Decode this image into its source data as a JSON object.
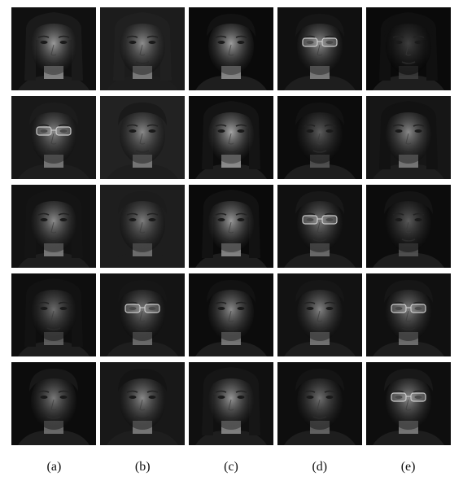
{
  "figure": {
    "columns": [
      {
        "label": "(a)",
        "faces": [
          {
            "skin": "#9a9a9a",
            "bg": "#101010",
            "hair": "#1a1a1a",
            "glasses": false,
            "long_hair": true,
            "brightness": 0.85
          },
          {
            "skin": "#8a8a8a",
            "bg": "#181818",
            "hair": "#1c1c1c",
            "glasses": true,
            "long_hair": false,
            "brightness": 0.7
          },
          {
            "skin": "#8c8c8c",
            "bg": "#121212",
            "hair": "#141414",
            "glasses": false,
            "long_hair": true,
            "brightness": 0.7
          },
          {
            "skin": "#6c6c6c",
            "bg": "#0e0e0e",
            "hair": "#121212",
            "glasses": false,
            "long_hair": true,
            "brightness": 0.55
          },
          {
            "skin": "#7a7a7a",
            "bg": "#0c0c0c",
            "hair": "#181818",
            "glasses": false,
            "long_hair": false,
            "brightness": 0.6
          }
        ]
      },
      {
        "label": "(b)",
        "faces": [
          {
            "skin": "#8e8e8e",
            "bg": "#1c1c1c",
            "hair": "#202020",
            "glasses": false,
            "long_hair": true,
            "brightness": 0.7
          },
          {
            "skin": "#8a8a8a",
            "bg": "#222222",
            "hair": "#1a1a1a",
            "glasses": false,
            "long_hair": false,
            "brightness": 0.65
          },
          {
            "skin": "#7e7e7e",
            "bg": "#1e1e1e",
            "hair": "#1c1c1c",
            "glasses": false,
            "long_hair": false,
            "brightness": 0.65
          },
          {
            "skin": "#7a7a7a",
            "bg": "#141414",
            "hair": "#161616",
            "glasses": true,
            "long_hair": false,
            "brightness": 0.6
          },
          {
            "skin": "#8a8a8a",
            "bg": "#181818",
            "hair": "#141414",
            "glasses": false,
            "long_hair": false,
            "brightness": 0.65
          }
        ]
      },
      {
        "label": "(c)",
        "faces": [
          {
            "skin": "#9e9e9e",
            "bg": "#0a0a0a",
            "hair": "#121212",
            "glasses": false,
            "long_hair": false,
            "brightness": 0.85
          },
          {
            "skin": "#a6a6a6",
            "bg": "#0c0c0c",
            "hair": "#141414",
            "glasses": false,
            "long_hair": true,
            "brightness": 0.9
          },
          {
            "skin": "#9a9a9a",
            "bg": "#0a0a0a",
            "hair": "#121212",
            "glasses": false,
            "long_hair": true,
            "brightness": 0.8
          },
          {
            "skin": "#8a8a8a",
            "bg": "#0c0c0c",
            "hair": "#121212",
            "glasses": false,
            "long_hair": false,
            "brightness": 0.7
          },
          {
            "skin": "#969696",
            "bg": "#101010",
            "hair": "#161616",
            "glasses": false,
            "long_hair": true,
            "brightness": 0.8
          }
        ]
      },
      {
        "label": "(d)",
        "faces": [
          {
            "skin": "#8e8e8e",
            "bg": "#101010",
            "hair": "#161616",
            "glasses": true,
            "long_hair": false,
            "brightness": 0.75
          },
          {
            "skin": "#5c5c5c",
            "bg": "#0c0c0c",
            "hair": "#121212",
            "glasses": false,
            "long_hair": false,
            "brightness": 0.45
          },
          {
            "skin": "#7a7a7a",
            "bg": "#101010",
            "hair": "#181818",
            "glasses": true,
            "long_hair": false,
            "brightness": 0.6
          },
          {
            "skin": "#848484",
            "bg": "#121212",
            "hair": "#161616",
            "glasses": false,
            "long_hair": false,
            "brightness": 0.7
          },
          {
            "skin": "#707070",
            "bg": "#0e0e0e",
            "hair": "#141414",
            "glasses": false,
            "long_hair": false,
            "brightness": 0.55
          }
        ]
      },
      {
        "label": "(e)",
        "faces": [
          {
            "skin": "#3e3e3e",
            "bg": "#0a0a0a",
            "hair": "#101010",
            "glasses": false,
            "long_hair": true,
            "brightness": 0.3
          },
          {
            "skin": "#8a8a8a",
            "bg": "#161616",
            "hair": "#121212",
            "glasses": false,
            "long_hair": true,
            "brightness": 0.7
          },
          {
            "skin": "#5a5a5a",
            "bg": "#0c0c0c",
            "hair": "#141414",
            "glasses": false,
            "long_hair": false,
            "brightness": 0.45
          },
          {
            "skin": "#7e7e7e",
            "bg": "#101010",
            "hair": "#161616",
            "glasses": true,
            "long_hair": false,
            "brightness": 0.65
          },
          {
            "skin": "#8a8a8a",
            "bg": "#0e0e0e",
            "hair": "#181818",
            "glasses": true,
            "long_hair": false,
            "brightness": 0.7
          }
        ]
      }
    ]
  }
}
